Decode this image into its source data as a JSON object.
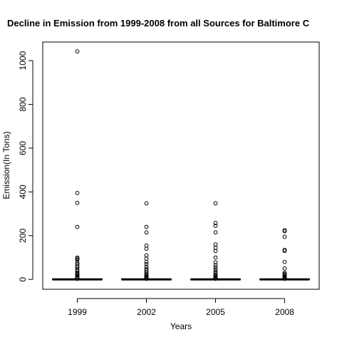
{
  "chart_data": {
    "type": "boxplot",
    "title": "Decline in Emission from 1999-2008 from all Sources for Baltimore C",
    "xlabel": "Years",
    "ylabel": "Emission(In Tons)",
    "ylim": [
      -45,
      1085
    ],
    "yticks": [
      0,
      200,
      400,
      600,
      800,
      1000
    ],
    "categories": [
      "1999",
      "2002",
      "2005",
      "2008"
    ],
    "boxes": [
      {
        "category": "1999",
        "whisker_low": 0,
        "q1": 0,
        "median": 0,
        "q3": 1,
        "whisker_high": 2,
        "outliers": [
          3,
          5,
          8,
          12,
          18,
          22,
          26,
          30,
          38,
          45,
          55,
          62,
          70,
          78,
          90,
          95,
          100,
          240,
          350,
          395,
          1042
        ]
      },
      {
        "category": "2002",
        "whisker_low": 0,
        "q1": 0,
        "median": 0,
        "q3": 1,
        "whisker_high": 2,
        "outliers": [
          3,
          5,
          8,
          12,
          16,
          20,
          25,
          32,
          40,
          48,
          58,
          70,
          80,
          95,
          110,
          140,
          155,
          215,
          240,
          348
        ]
      },
      {
        "category": "2005",
        "whisker_low": 0,
        "q1": 0,
        "median": 0,
        "q3": 1,
        "whisker_high": 2,
        "outliers": [
          3,
          5,
          8,
          12,
          16,
          22,
          28,
          35,
          45,
          55,
          65,
          78,
          100,
          130,
          145,
          160,
          215,
          245,
          258,
          348
        ]
      },
      {
        "category": "2008",
        "whisker_low": 0,
        "q1": 0,
        "median": 0,
        "q3": 1,
        "whisker_high": 2,
        "outliers": [
          3,
          5,
          8,
          12,
          16,
          20,
          25,
          30,
          50,
          80,
          130,
          135,
          195,
          220,
          225
        ]
      }
    ],
    "grid": false,
    "legend": "none"
  }
}
